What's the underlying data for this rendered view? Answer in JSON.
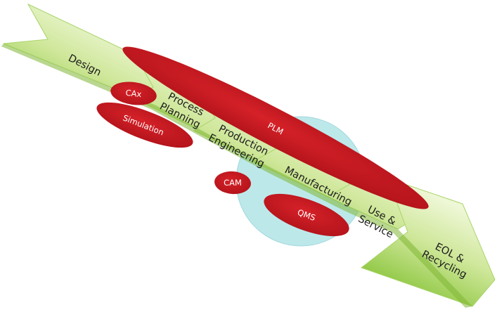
{
  "stages": [
    {
      "id": "design",
      "lines": [
        "Design"
      ]
    },
    {
      "id": "process-planning",
      "lines": [
        "Process",
        "Planning"
      ]
    },
    {
      "id": "production-engineering",
      "lines": [
        "Production",
        "Engineering"
      ]
    },
    {
      "id": "manufacturing",
      "lines": [
        "Manufacturing"
      ]
    },
    {
      "id": "use-service",
      "lines": [
        "Use &",
        "Service"
      ]
    },
    {
      "id": "eol-recycling",
      "lines": [
        "EOL &",
        "Recycling"
      ]
    }
  ],
  "tools": [
    {
      "id": "plm",
      "label": "PLM"
    },
    {
      "id": "cax",
      "label": "CAx"
    },
    {
      "id": "simulation",
      "label": "Simulation"
    },
    {
      "id": "cam",
      "label": "CAM"
    },
    {
      "id": "qms",
      "label": "QMS"
    }
  ],
  "colors": {
    "chevron_light": "#eef7d6",
    "chevron_dark": "#8cc63f",
    "chevron_edge": "#a9d46a",
    "bubble_fill": "#bde8ea",
    "bubble_edge": "#9fd8dc",
    "tool_red": "#c4161c",
    "tool_red_dark": "#a8100f"
  }
}
